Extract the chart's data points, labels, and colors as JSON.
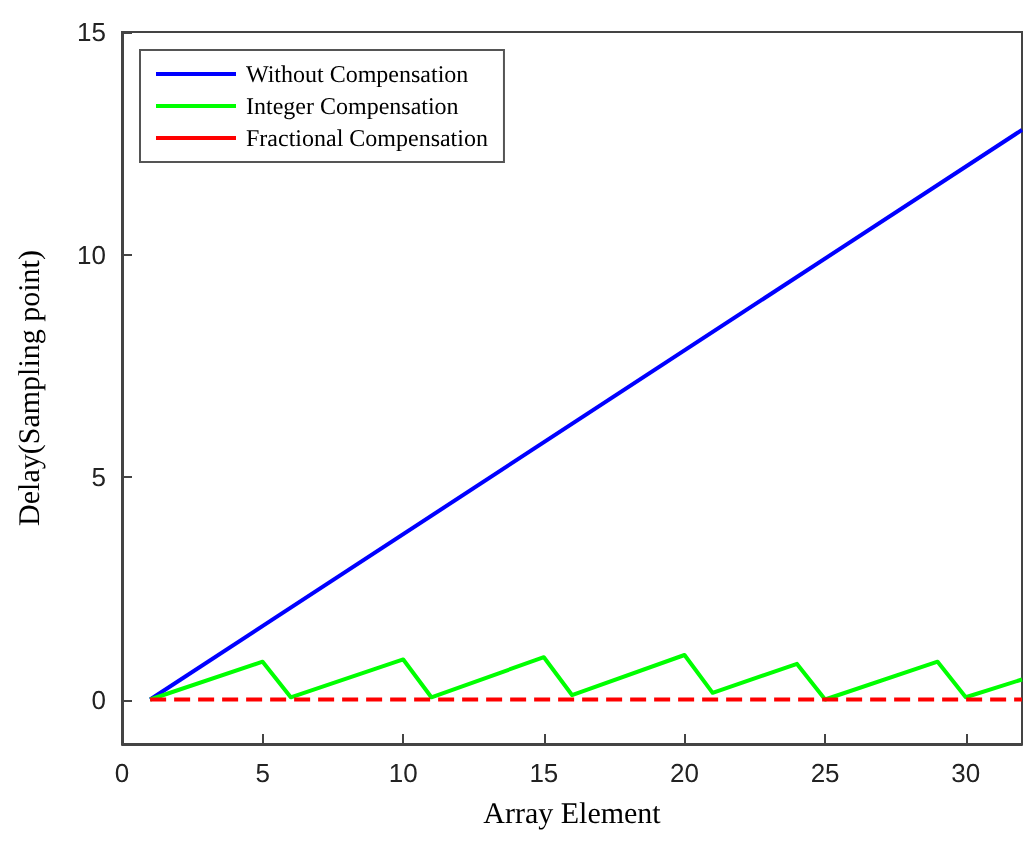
{
  "chart_data": {
    "type": "line",
    "xlabel": "Array Element",
    "ylabel": "Delay(Sampling point)",
    "xlim": [
      0,
      32
    ],
    "xticks": [
      0,
      5,
      10,
      15,
      20,
      25,
      30
    ],
    "ylim": [
      -1,
      15
    ],
    "yticks": [
      0,
      5,
      10,
      15
    ],
    "grid": false,
    "legend": "top left",
    "marker": "none",
    "series": [
      {
        "name": "Without Compensation",
        "color": "#0000ff",
        "x": [
          1,
          32
        ],
        "values": [
          0,
          12.8
        ]
      },
      {
        "name": "Integer Compensation",
        "color": "#00ff00",
        "x": [
          1,
          5,
          6,
          10,
          11,
          15,
          16,
          20,
          21,
          24,
          25,
          29,
          30,
          32
        ],
        "values": [
          0,
          0.85,
          0.05,
          0.9,
          0.05,
          0.95,
          0.1,
          1.0,
          0.15,
          0.8,
          0,
          0.85,
          0.05,
          0.45
        ]
      },
      {
        "name": "Fractional Compensation",
        "color": "#ff0000",
        "line_style": "dashed",
        "x": [
          1,
          32
        ],
        "values": [
          0,
          0
        ]
      }
    ]
  }
}
